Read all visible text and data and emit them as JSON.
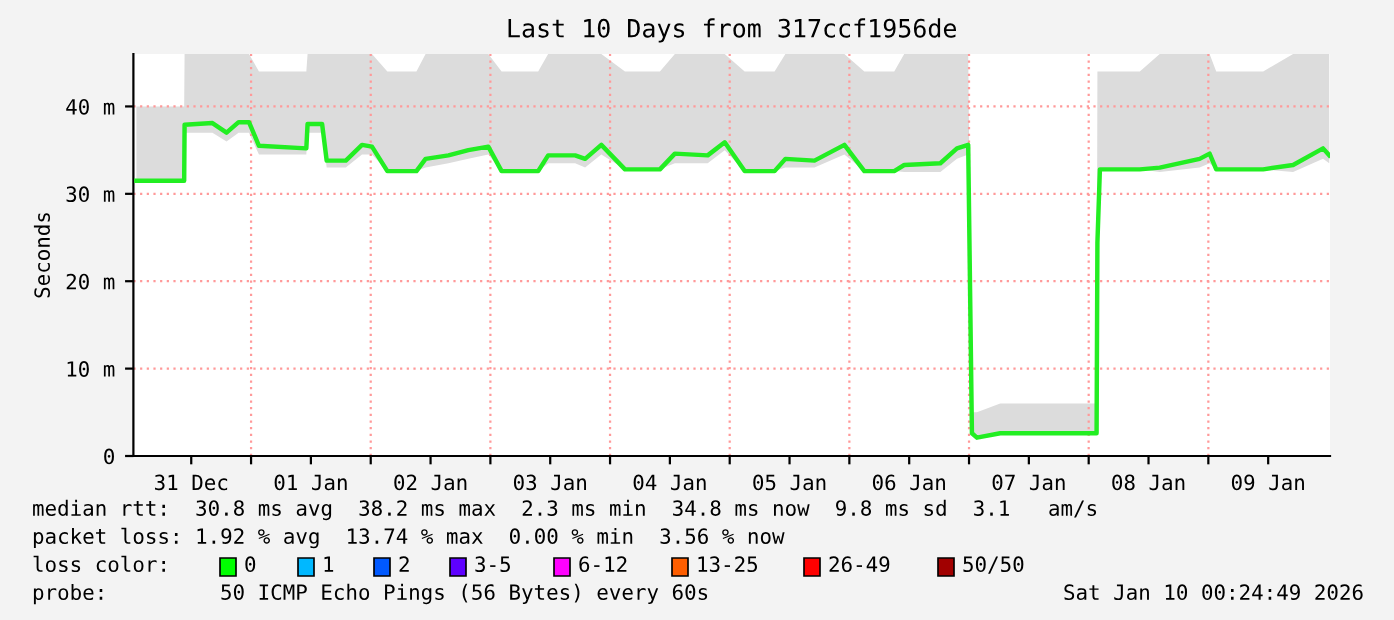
{
  "chart_data": {
    "type": "line",
    "title": "Last 10 Days from 317ccf1956de",
    "ylabel": "Seconds",
    "xlim": [
      "2025-12-31T00:24",
      "2026-01-10T00:24"
    ],
    "xticks": [
      {
        "value": "2026-01-01T00:00",
        "label": null
      },
      {
        "value": "2026-01-02T00:00",
        "label": null
      },
      {
        "value": "2026-01-03T00:00",
        "label": null
      },
      {
        "value": "2026-01-04T00:00",
        "label": null
      },
      {
        "value": "2026-01-05T00:00",
        "label": null
      },
      {
        "value": "2026-01-06T00:00",
        "label": null
      },
      {
        "value": "2026-01-07T00:00",
        "label": null
      },
      {
        "value": "2026-01-08T00:00",
        "label": null
      },
      {
        "value": "2026-01-09T00:00",
        "label": null
      },
      {
        "value": "2025-12-31T12:00",
        "label": "31 Dec"
      },
      {
        "value": "2026-01-01T12:00",
        "label": "01 Jan"
      },
      {
        "value": "2026-01-02T12:00",
        "label": "02 Jan"
      },
      {
        "value": "2026-01-03T12:00",
        "label": "03 Jan"
      },
      {
        "value": "2026-01-04T12:00",
        "label": "04 Jan"
      },
      {
        "value": "2026-01-05T12:00",
        "label": "05 Jan"
      },
      {
        "value": "2026-01-06T12:00",
        "label": "06 Jan"
      },
      {
        "value": "2026-01-07T12:00",
        "label": "07 Jan"
      },
      {
        "value": "2026-01-08T12:00",
        "label": "08 Jan"
      },
      {
        "value": "2026-01-09T12:00",
        "label": "09 Jan"
      }
    ],
    "ylim": [
      0,
      46
    ],
    "yticks": [
      0,
      {
        "value": 10,
        "label": "10 m"
      },
      {
        "value": 20,
        "label": "20 m"
      },
      {
        "value": 30,
        "label": "30 m"
      },
      {
        "value": 40,
        "label": "40 m"
      }
    ],
    "grid": true,
    "legend": false,
    "line_style": "solid",
    "marker": "none",
    "series": [
      {
        "color": "#22ee22",
        "x": [
          "2025-12-31T01:00",
          "2025-12-31T10:35",
          "2025-12-31T10:40",
          "2025-12-31T16:15",
          "2025-12-31T19:05",
          "2025-12-31T21:30",
          "2025-12-31T23:35",
          "2026-01-01T01:35",
          "2026-01-01T11:05",
          "2026-01-01T11:20",
          "2026-01-01T14:15",
          "2026-01-01T15:10",
          "2026-01-01T19:00",
          "2026-01-01T22:15",
          "2026-01-02T00:15",
          "2026-01-02T03:20",
          "2026-01-02T09:10",
          "2026-01-02T11:00",
          "2026-01-02T15:35",
          "2026-01-02T19:35",
          "2026-01-02T23:35",
          "2026-01-03T02:15",
          "2026-01-03T09:35",
          "2026-01-03T11:35",
          "2026-01-03T17:00",
          "2026-01-03T19:00",
          "2026-01-03T22:15",
          "2026-01-04T03:00",
          "2026-01-04T10:00",
          "2026-01-04T13:00",
          "2026-01-04T19:35",
          "2026-01-04T23:00",
          "2026-01-05T03:00",
          "2026-01-05T09:00",
          "2026-01-05T11:10",
          "2026-01-05T17:00",
          "2026-01-05T23:00",
          "2026-01-06T03:00",
          "2026-01-06T09:00",
          "2026-01-06T11:00",
          "2026-01-06T18:15",
          "2026-01-06T21:35",
          "2026-01-06T23:50",
          "2026-01-07T00:35",
          "2026-01-07T01:35",
          "2026-01-07T06:15",
          "2026-01-08T01:35",
          "2026-01-08T01:45",
          "2026-01-08T02:15",
          "2026-01-08T10:15",
          "2026-01-08T14:15",
          "2026-01-08T22:15",
          "2026-01-09T00:15",
          "2026-01-09T01:35",
          "2026-01-09T11:00",
          "2026-01-09T17:00",
          "2026-01-09T23:00",
          "2026-01-10T00:15"
        ],
        "values": [
          31.5,
          31.5,
          37.9,
          38.1,
          37,
          38.2,
          38.2,
          35.5,
          35.2,
          38,
          38,
          33.8,
          33.8,
          35.6,
          35.4,
          32.6,
          32.6,
          34,
          34.4,
          35,
          35.4,
          32.6,
          32.6,
          34.4,
          34.4,
          34,
          35.6,
          32.8,
          32.8,
          34.6,
          34.4,
          35.9,
          32.6,
          32.6,
          34,
          33.8,
          35.6,
          32.6,
          32.6,
          33.3,
          33.5,
          35.2,
          35.6,
          2.6,
          2.1,
          2.6,
          2.6,
          24.4,
          32.8,
          32.8,
          33,
          34,
          34.6,
          32.8,
          32.8,
          33.3,
          35.2,
          34.4
        ],
        "lower": [
          31.5,
          31.5,
          37,
          37,
          36,
          37,
          37,
          34.5,
          34.5,
          37,
          37,
          33,
          33,
          34.5,
          34.5,
          32.6,
          32.6,
          33,
          33.5,
          34,
          34.5,
          32.6,
          32.6,
          33.5,
          33.5,
          33,
          34.5,
          32.8,
          32.8,
          33.5,
          33.5,
          35,
          32.6,
          32.6,
          33,
          33,
          34.5,
          32.6,
          32.6,
          32.5,
          32.5,
          34,
          34.5,
          2.6,
          2.1,
          2.6,
          2.6,
          24.4,
          32.8,
          32.8,
          32.5,
          33,
          33.5,
          32.8,
          32.8,
          32.5,
          34,
          33.5
        ],
        "upper": [
          40,
          40,
          46,
          46,
          46,
          46,
          46,
          44,
          44,
          46,
          46,
          46,
          46,
          46,
          46,
          44,
          44,
          46,
          46,
          46,
          46,
          44,
          44,
          46,
          46,
          46,
          46,
          44,
          44,
          46,
          46,
          46,
          44,
          44,
          46,
          46,
          46,
          44,
          44,
          46,
          46,
          46,
          46,
          5,
          5,
          6,
          6,
          44,
          44,
          44,
          46,
          46,
          46,
          44,
          44,
          46,
          46,
          46
        ]
      }
    ],
    "annotations": [
      "median rtt:  30.8 ms avg  38.2 ms max  2.3 ms min  34.8 ms now  9.8 ms sd  3.1   am/s",
      "packet loss: 1.92 % avg  13.74 % max  0.00 % min  3.56 % now",
      "loss color:",
      "0",
      "1",
      "2",
      "3-5",
      "6-12",
      "13-25",
      "26-49",
      "50/50",
      "probe:",
      "50 ICMP Echo Pings (56 Bytes) every 60s",
      "Sat Jan 10 00:24:49 2026"
    ]
  }
}
